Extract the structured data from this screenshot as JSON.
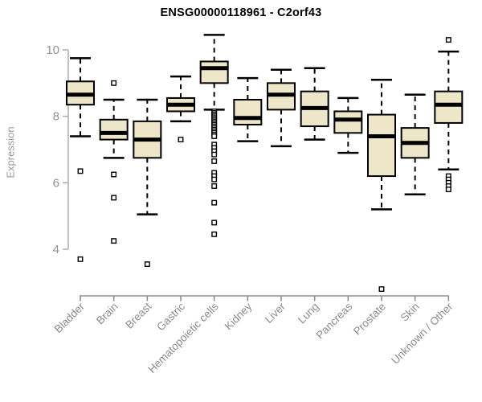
{
  "chart_data": {
    "type": "boxplot",
    "title": "ENSG00000118961 - C2orf43",
    "ylabel": "Expression",
    "xlabel": "",
    "yticks": [
      10,
      8,
      6,
      4
    ],
    "ylim": [
      2.6,
      10.6
    ],
    "grid": false,
    "legend": false,
    "categories": [
      "Bladder",
      "Brain",
      "Breast",
      "Gastric",
      "Hematopoietic cells",
      "Kidney",
      "Liver",
      "Lung",
      "Pancreas",
      "Prostate",
      "Skin",
      "Unknown / Other"
    ],
    "series": [
      {
        "name": "Bladder",
        "whisker_low": 7.4,
        "q1": 8.35,
        "median": 8.65,
        "q3": 9.05,
        "whisker_high": 9.75,
        "outliers": [
          6.35,
          3.7
        ]
      },
      {
        "name": "Brain",
        "whisker_low": 6.75,
        "q1": 7.3,
        "median": 7.5,
        "q3": 7.9,
        "whisker_high": 8.5,
        "outliers": [
          9.0,
          6.25,
          5.55,
          4.25
        ]
      },
      {
        "name": "Breast",
        "whisker_low": 5.05,
        "q1": 6.75,
        "median": 7.3,
        "q3": 7.85,
        "whisker_high": 8.5,
        "outliers": [
          3.55
        ]
      },
      {
        "name": "Gastric",
        "whisker_low": 7.85,
        "q1": 8.15,
        "median": 8.35,
        "q3": 8.55,
        "whisker_high": 9.2,
        "outliers": [
          7.3
        ]
      },
      {
        "name": "Hematopoietic cells",
        "whisker_low": 8.2,
        "q1": 9.0,
        "median": 9.45,
        "q3": 9.65,
        "whisker_high": 10.45,
        "outliers": [
          8.15,
          8.1,
          8.05,
          8.0,
          7.95,
          7.9,
          7.85,
          7.8,
          7.75,
          7.7,
          7.65,
          7.6,
          7.55,
          7.5,
          7.45,
          7.4,
          7.15,
          7.05,
          6.95,
          6.85,
          6.65,
          6.3,
          6.2,
          6.1,
          5.9,
          5.4,
          4.8,
          4.45
        ]
      },
      {
        "name": "Kidney",
        "whisker_low": 7.25,
        "q1": 7.75,
        "median": 7.95,
        "q3": 8.5,
        "whisker_high": 9.15,
        "outliers": []
      },
      {
        "name": "Liver",
        "whisker_low": 7.1,
        "q1": 8.2,
        "median": 8.65,
        "q3": 9.0,
        "whisker_high": 9.4,
        "outliers": []
      },
      {
        "name": "Lung",
        "whisker_low": 7.3,
        "q1": 7.7,
        "median": 8.25,
        "q3": 8.75,
        "whisker_high": 9.45,
        "outliers": []
      },
      {
        "name": "Pancreas",
        "whisker_low": 6.9,
        "q1": 7.5,
        "median": 7.9,
        "q3": 8.15,
        "whisker_high": 8.55,
        "outliers": []
      },
      {
        "name": "Prostate",
        "whisker_low": 5.2,
        "q1": 6.2,
        "median": 7.4,
        "q3": 8.05,
        "whisker_high": 9.1,
        "outliers": [
          2.8
        ]
      },
      {
        "name": "Skin",
        "whisker_low": 5.65,
        "q1": 6.75,
        "median": 7.2,
        "q3": 7.65,
        "whisker_high": 8.65,
        "outliers": []
      },
      {
        "name": "Unknown / Other",
        "whisker_low": 6.4,
        "q1": 7.8,
        "median": 8.35,
        "q3": 8.75,
        "whisker_high": 9.95,
        "outliers": [
          10.3,
          6.2,
          6.1,
          6.0,
          5.9,
          5.8
        ]
      }
    ],
    "colors": {
      "box_fill": "#EDE6C8",
      "box_stroke": "#000000",
      "median": "#000000",
      "whisker": "#000000",
      "outlier_stroke": "#000000",
      "y_axis": "#ADB0B3",
      "x_axis": "#8F8F8F",
      "tick_label": "#8E9196",
      "title": "#000000"
    }
  }
}
